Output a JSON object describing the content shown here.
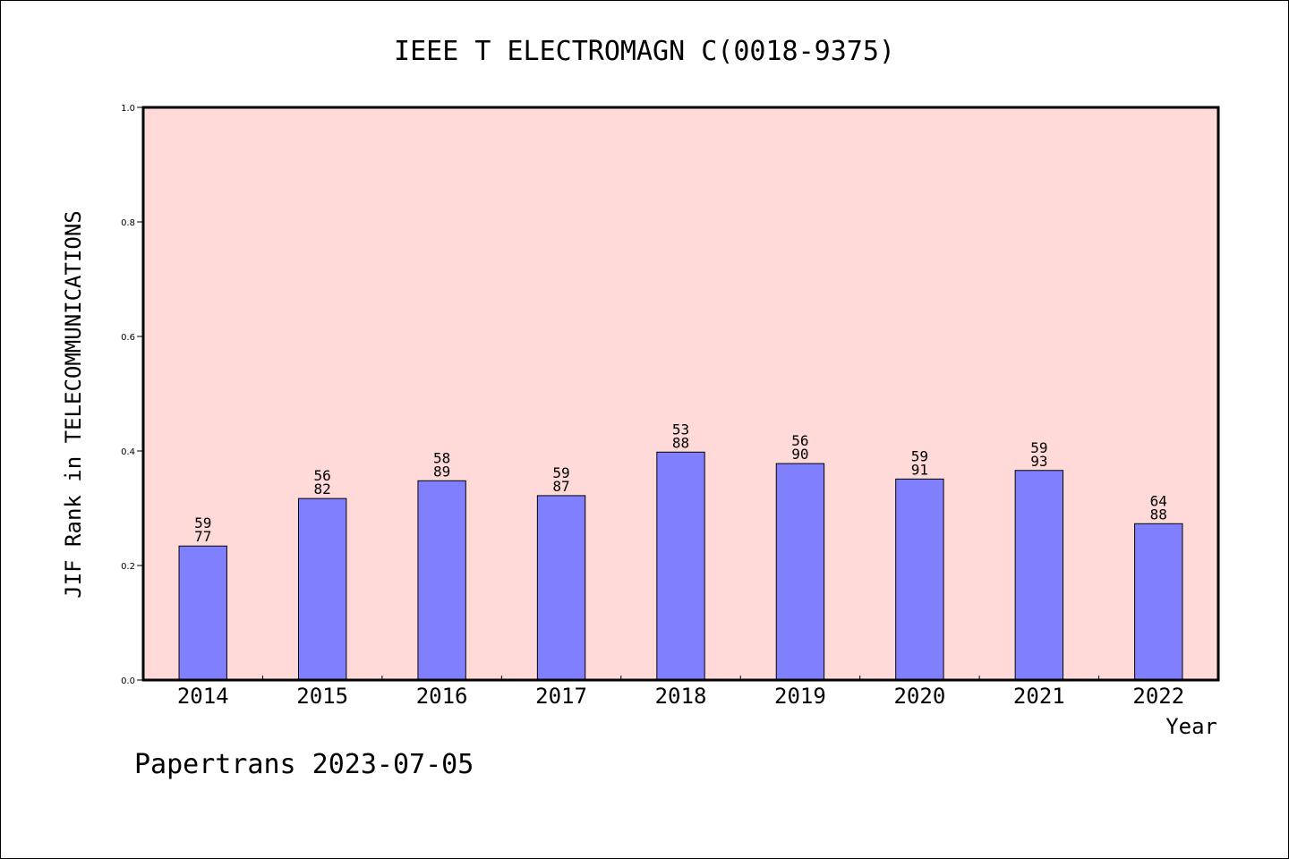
{
  "chart_data": {
    "type": "bar",
    "title": "IEEE T ELECTROMAGN C(0018-9375)",
    "xlabel": "Year",
    "ylabel": "JIF Rank in TELECOMMUNICATIONS",
    "ylim": [
      0,
      1.0
    ],
    "yticks": [
      "0.0",
      "0.2",
      "0.4",
      "0.6",
      "0.8",
      "1.0"
    ],
    "categories": [
      "2014",
      "2015",
      "2016",
      "2017",
      "2018",
      "2019",
      "2020",
      "2021",
      "2022"
    ],
    "values": [
      0.234,
      0.317,
      0.348,
      0.322,
      0.398,
      0.378,
      0.351,
      0.366,
      0.273
    ],
    "ranks": [
      "59",
      "56",
      "58",
      "59",
      "53",
      "56",
      "59",
      "59",
      "64"
    ],
    "totals": [
      "77",
      "82",
      "89",
      "87",
      "88",
      "90",
      "91",
      "93",
      "88"
    ],
    "grid": false,
    "colors": {
      "plot_background": "#ffdad8",
      "bar_fill": "#8080ff",
      "bar_stroke": "#000000"
    }
  },
  "footer": {
    "credit": "Papertrans 2023-07-05"
  }
}
